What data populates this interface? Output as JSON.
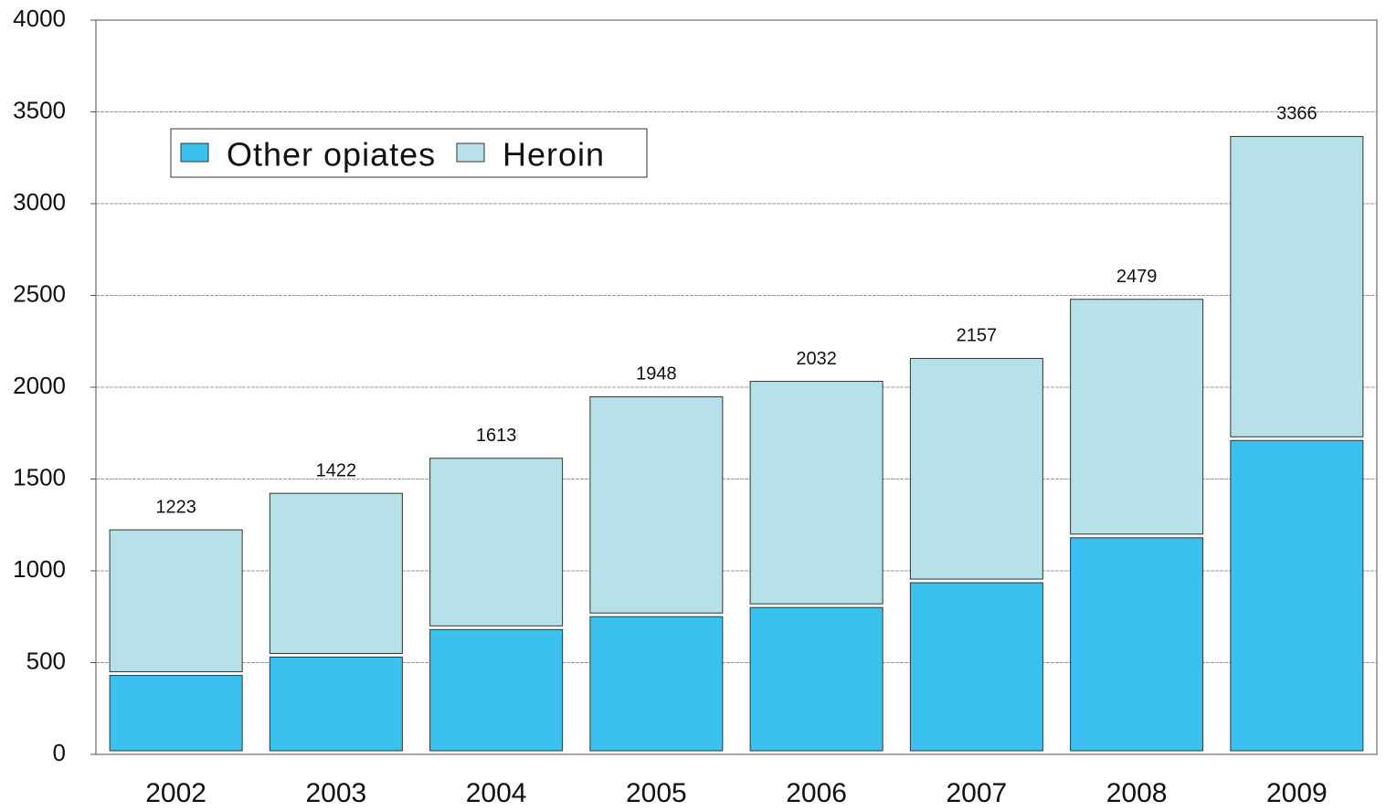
{
  "chart_data": {
    "type": "stacked_bar",
    "categories": [
      "2002",
      "2003",
      "2004",
      "2005",
      "2006",
      "2007",
      "2008",
      "2009"
    ],
    "series": [
      {
        "name": "Other opiates",
        "color": "#3bc1f0",
        "values": [
          440,
          540,
          690,
          760,
          810,
          945,
          1190,
          1720
        ]
      },
      {
        "name": "Heroin",
        "color": "#b7e1e8",
        "values": [
          783,
          882,
          923,
          1188,
          1222,
          1212,
          1289,
          1646
        ]
      }
    ],
    "totals": [
      1223,
      1422,
      1613,
      1948,
      2032,
      2157,
      2479,
      3366
    ],
    "ylim": [
      0,
      4000
    ],
    "yticks": [
      0,
      500,
      1000,
      1500,
      2000,
      2500,
      3000,
      3500,
      4000
    ],
    "grid": true,
    "legend": "top-left"
  }
}
